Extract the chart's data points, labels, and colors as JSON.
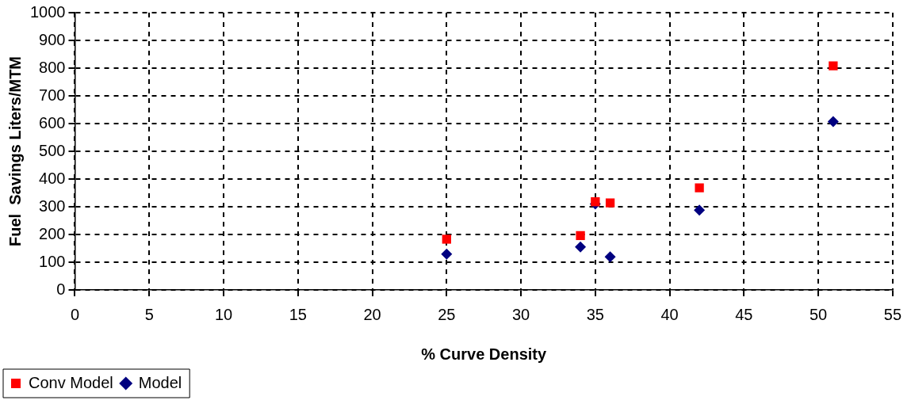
{
  "chart_data": {
    "type": "scatter",
    "xlabel": "% Curve Density",
    "ylabel": "Fuel  Savings Liters/MTM",
    "xlim": [
      0,
      55
    ],
    "xticks": [
      0,
      5,
      10,
      15,
      20,
      25,
      30,
      35,
      40,
      45,
      50,
      55
    ],
    "ylim": [
      0,
      1000
    ],
    "yticks": [
      0,
      100,
      200,
      300,
      400,
      500,
      600,
      700,
      800,
      900,
      1000
    ],
    "grid": true,
    "legend": "bottom left",
    "series": [
      {
        "name": "Model",
        "color": "#000080",
        "marker": "diamond",
        "x": [
          25,
          34,
          35,
          36,
          42,
          51
        ],
        "values": [
          129,
          155,
          310,
          119,
          288,
          607
        ]
      },
      {
        "name": "Conv Model",
        "color": "#ff0000",
        "marker": "square",
        "x": [
          25,
          34,
          35,
          36,
          42,
          51
        ],
        "values": [
          183,
          196,
          318,
          314,
          368,
          808
        ]
      }
    ]
  }
}
